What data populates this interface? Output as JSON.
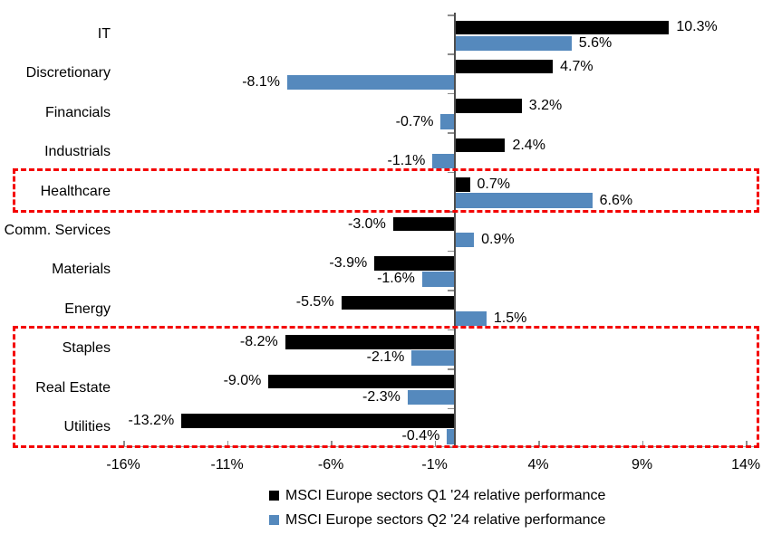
{
  "chart_data": {
    "type": "bar",
    "orientation": "horizontal",
    "title": "",
    "categories": [
      "IT",
      "Discretionary",
      "Financials",
      "Industrials",
      "Healthcare",
      "Comm. Services",
      "Materials",
      "Energy",
      "Staples",
      "Real Estate",
      "Utilities"
    ],
    "series": [
      {
        "name": "MSCI Europe sectors Q1 '24 relative performance",
        "color": "#000000",
        "values": [
          10.3,
          4.7,
          3.2,
          2.4,
          0.7,
          -3.0,
          -3.9,
          -5.5,
          -8.2,
          -9.0,
          -13.2
        ],
        "data_labels": [
          "10.3%",
          "4.7%",
          "3.2%",
          "2.4%",
          "0.7%",
          "-3.0%",
          "-3.9%",
          "-5.5%",
          "-8.2%",
          "-9.0%",
          "-13.2%"
        ]
      },
      {
        "name": "MSCI Europe sectors Q2 '24 relative performance",
        "color": "#5589BD",
        "values": [
          5.6,
          -8.1,
          -0.7,
          -1.1,
          6.6,
          0.9,
          -1.6,
          1.5,
          -2.1,
          -2.3,
          -0.4
        ],
        "data_labels": [
          "5.6%",
          "-8.1%",
          "-0.7%",
          "-1.1%",
          "6.6%",
          "0.9%",
          "-1.6%",
          "1.5%",
          "-2.1%",
          "-2.3%",
          "-0.4%"
        ]
      }
    ],
    "x_axis": {
      "min": -16.3,
      "max": 14.6,
      "ticks": [
        {
          "value": -16,
          "label": "-16%"
        },
        {
          "value": -11,
          "label": "-11%"
        },
        {
          "value": -6,
          "label": "-6%"
        },
        {
          "value": -1,
          "label": "-1%"
        },
        {
          "value": 4,
          "label": "4%"
        },
        {
          "value": 9,
          "label": "9%"
        },
        {
          "value": 14,
          "label": "14%"
        }
      ]
    },
    "grid": false,
    "legend_position": "bottom",
    "legend": [
      {
        "label": "MSCI Europe sectors Q1 '24 relative performance",
        "color": "#000000"
      },
      {
        "label": "MSCI Europe sectors Q2 '24 relative performance",
        "color": "#5589BD"
      }
    ],
    "highlights": [
      {
        "categories": [
          "Healthcare"
        ],
        "style": "red-dashed-box",
        "color": "#F40000"
      },
      {
        "categories": [
          "Staples",
          "Real Estate",
          "Utilities"
        ],
        "style": "red-dashed-box",
        "color": "#F40000"
      }
    ],
    "colors": {
      "series_q1": "#000000",
      "series_q2": "#5589BD",
      "highlight_box": "#F40000",
      "value_axis_line": "#4D4D4D",
      "category_axis_line": "#A6A6A6"
    }
  }
}
